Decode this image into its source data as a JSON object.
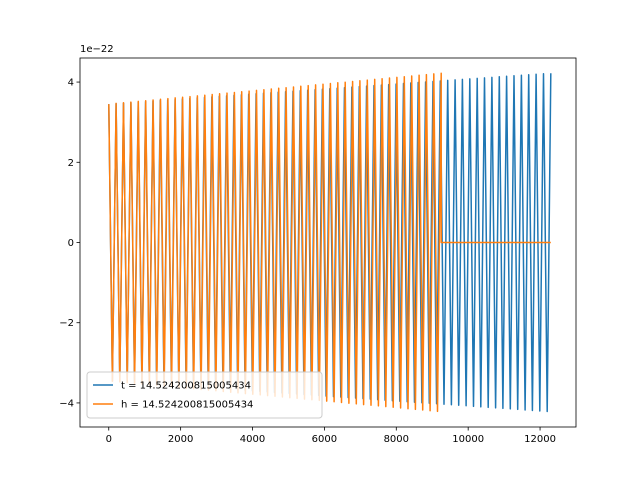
{
  "chart_data": {
    "type": "line",
    "title": "",
    "xlabel": "",
    "ylabel": "",
    "y_offset_label": "1e−22",
    "xlim": [
      -800,
      13000
    ],
    "ylim": [
      -4.6,
      4.6
    ],
    "x_ticks": [
      0,
      2000,
      4000,
      6000,
      8000,
      10000,
      12000
    ],
    "x_tick_labels": [
      "0",
      "2000",
      "4000",
      "6000",
      "8000",
      "10000",
      "12000"
    ],
    "y_ticks": [
      -4,
      -2,
      0,
      2,
      4
    ],
    "y_tick_labels": [
      "−4",
      "−2",
      "0",
      "2",
      "4"
    ],
    "grid": false,
    "legend_position": "lower-left",
    "series": [
      {
        "name": "t = 14.524200815005434",
        "color": "#1f77b4",
        "x_start": 0,
        "x_end": 12300,
        "amp_start": 3.45,
        "amp_end": 4.22,
        "cycles": 120
      },
      {
        "name": "h = 14.524200815005434",
        "color": "#ff7f0e",
        "x_start": 0,
        "x_end": 9250,
        "amp_start": 3.45,
        "amp_end": 4.22,
        "cycles": 90,
        "flat_until": 12300,
        "flat_value": 0
      }
    ]
  }
}
